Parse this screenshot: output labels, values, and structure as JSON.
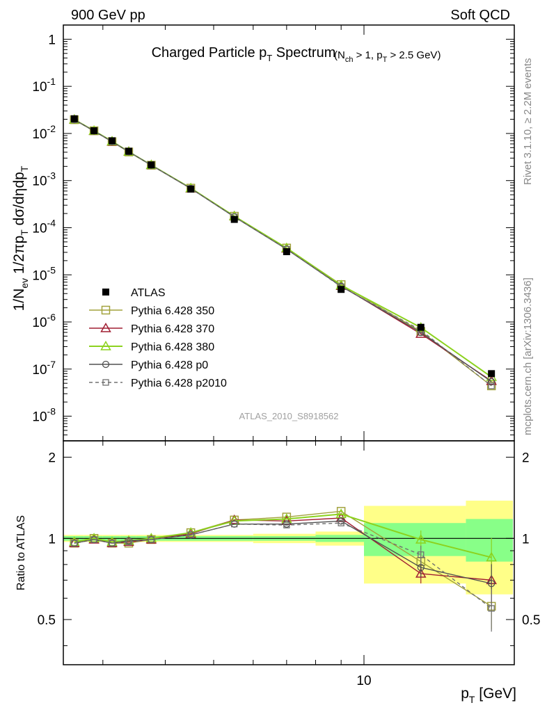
{
  "header": {
    "left": "900 GeV pp",
    "right": "Soft QCD"
  },
  "side_text": {
    "rivet": "Rivet 3.1.10, ≥ 2.2M events",
    "mcplots": "mcplots.cern.ch [arXiv:1306.3436]"
  },
  "chart_data": [
    {
      "type": "scatter",
      "title": "Charged Particle p_T Spectrum",
      "title_suffix": "(N_ch > 1, p_T > 2.5 GeV)",
      "ylabel": "1/N_ev 1/2πp_T dσ/dηdp_T",
      "xlabel": "p_T [GeV]",
      "xscale": "log",
      "yscale": "log",
      "xlim": [
        2.5,
        20
      ],
      "ylim": [
        3e-09,
        2
      ],
      "yticks": [
        "10^-8",
        "10^-7",
        "10^-6",
        "10^-5",
        "10^-4",
        "10^-3",
        "10^-2",
        "10^-1",
        "1"
      ],
      "xticks": [
        "10"
      ],
      "watermark": "ATLAS_2010_S8918562",
      "legend_position": "left-middle",
      "x": [
        2.63,
        2.88,
        3.13,
        3.38,
        3.75,
        4.5,
        5.5,
        7.0,
        9.0,
        13.0,
        18.0
      ],
      "series": [
        {
          "name": "ATLAS",
          "color": "#000000",
          "marker": "filled-square",
          "values": [
            0.0205,
            0.0114,
            0.007,
            0.0042,
            0.00215,
            0.00066,
            0.00015,
            3.1e-05,
            4.9e-06,
            7.7e-07,
            8e-08
          ]
        },
        {
          "name": "Pythia 6.428 350",
          "color": "#a2a23c",
          "marker": "open-square",
          "line": "solid",
          "values": [
            0.0196,
            0.0114,
            0.0067,
            0.00405,
            0.00212,
            0.00069,
            0.000175,
            3.7e-05,
            6.2e-06,
            6.3e-07,
            4.4e-08
          ]
        },
        {
          "name": "Pythia 6.428 370",
          "color": "#a01e32",
          "marker": "open-triangle",
          "line": "solid",
          "values": [
            0.0196,
            0.0113,
            0.0067,
            0.0041,
            0.00213,
            0.00068,
            0.000176,
            3.6e-05,
            5.8e-06,
            5.6e-07,
            5.6e-08
          ]
        },
        {
          "name": "Pythia 6.428 380",
          "color": "#8cd21e",
          "marker": "open-triangle",
          "line": "solid",
          "values": [
            0.0197,
            0.0114,
            0.0068,
            0.0041,
            0.00214,
            0.00069,
            0.000175,
            3.7e-05,
            6e-06,
            7.6e-07,
            6.8e-08
          ]
        },
        {
          "name": "Pythia 6.428 p0",
          "color": "#505050",
          "marker": "open-circle",
          "line": "solid",
          "values": [
            0.0196,
            0.0113,
            0.0067,
            0.0041,
            0.00212,
            0.00068,
            0.00017,
            3.5e-05,
            5.7e-06,
            6e-07,
            5.4e-08
          ]
        },
        {
          "name": "Pythia 6.428 p2010",
          "color": "#707070",
          "marker": "open-square-small",
          "line": "dashed",
          "values": [
            0.0196,
            0.0113,
            0.0067,
            0.0041,
            0.00212,
            0.00068,
            0.00017,
            3.5e-05,
            5.6e-06,
            6.7e-07,
            4.4e-08
          ]
        }
      ]
    },
    {
      "type": "scatter",
      "title": "",
      "ylabel": "Ratio to ATLAS",
      "xlabel": "p_T [GeV]",
      "xscale": "log",
      "xlim": [
        2.5,
        20
      ],
      "ylim": [
        0.34,
        2.3
      ],
      "yticks": [
        "0.5",
        "1",
        "2"
      ],
      "reference_line": 1,
      "bands": {
        "x_edges": [
          2.5,
          2.75,
          3.0,
          3.25,
          3.5,
          4.0,
          5.0,
          6.0,
          8.0,
          10.0,
          16.0,
          20.0
        ],
        "green_halfwidth": [
          0.02,
          0.02,
          0.02,
          0.02,
          0.02,
          0.02,
          0.02,
          0.02,
          0.03,
          0.14,
          0.18
        ],
        "yellow_halfwidth": [
          0.03,
          0.03,
          0.03,
          0.03,
          0.03,
          0.03,
          0.03,
          0.04,
          0.06,
          0.32,
          0.38
        ]
      },
      "x": [
        2.63,
        2.88,
        3.13,
        3.38,
        3.75,
        4.5,
        5.5,
        7.0,
        9.0,
        13.0,
        18.0
      ],
      "series": [
        {
          "name": "Pythia 6.428 350",
          "values": [
            0.96,
            1.0,
            0.96,
            0.96,
            0.99,
            1.05,
            1.17,
            1.2,
            1.26,
            0.82,
            0.56
          ]
        },
        {
          "name": "Pythia 6.428 370",
          "values": [
            0.96,
            0.99,
            0.96,
            0.97,
            0.99,
            1.04,
            1.17,
            1.16,
            1.19,
            0.74,
            0.7
          ]
        },
        {
          "name": "Pythia 6.428 380",
          "values": [
            0.97,
            1.0,
            0.97,
            0.98,
            1.0,
            1.05,
            1.16,
            1.18,
            1.23,
            0.99,
            0.85
          ]
        },
        {
          "name": "Pythia 6.428 p0",
          "values": [
            0.96,
            0.99,
            0.96,
            0.98,
            0.99,
            1.03,
            1.13,
            1.13,
            1.16,
            0.78,
            0.68
          ]
        },
        {
          "name": "Pythia 6.428 p2010",
          "values": [
            0.96,
            0.99,
            0.96,
            0.97,
            0.99,
            1.03,
            1.13,
            1.12,
            1.14,
            0.87,
            0.55
          ]
        }
      ]
    }
  ]
}
